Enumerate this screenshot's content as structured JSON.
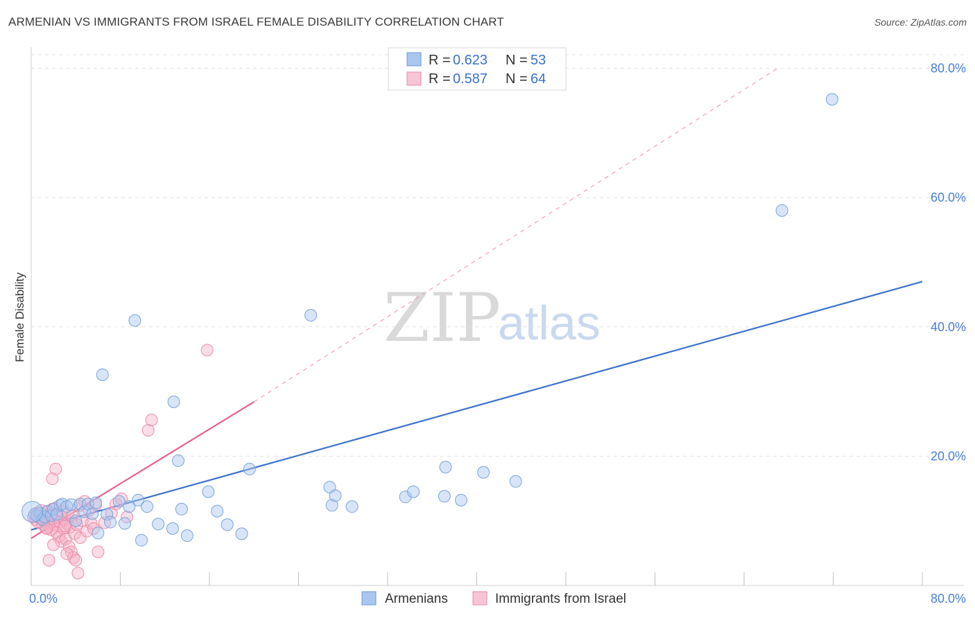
{
  "title": "ARMENIAN VS IMMIGRANTS FROM ISRAEL FEMALE DISABILITY CORRELATION CHART",
  "source": "Source: ZipAtlas.com",
  "watermark": {
    "zip": "ZIP",
    "atlas": "atlas"
  },
  "colors": {
    "blue": "#3a72cc",
    "blue_fill": "#a9c6ef",
    "pink": "#e8608a",
    "pink_fill": "#f5b3c8",
    "grid": "#dde2ea"
  },
  "legend": {
    "r_label": "R =",
    "n_label": "N =",
    "rows": [
      {
        "r": "0.623",
        "n": "53"
      },
      {
        "r": "0.587",
        "n": "64"
      }
    ]
  },
  "bottom_legend": [
    "Armenians",
    "Immigrants from Israel"
  ],
  "chart_data": {
    "type": "scatter",
    "title": "ARMENIAN VS IMMIGRANTS FROM ISRAEL FEMALE DISABILITY CORRELATION CHART",
    "xlabel": "",
    "ylabel": "Female Disability",
    "xlim": [
      0,
      80
    ],
    "ylim": [
      0,
      80
    ],
    "x_tick_labels": [
      "0.0%",
      "80.0%"
    ],
    "y_tick_labels": [
      "20.0%",
      "40.0%",
      "60.0%",
      "80.0%"
    ],
    "y_ticks": [
      20,
      40,
      60,
      80
    ],
    "series": [
      {
        "name": "Armenians",
        "r": 0.623,
        "n": 53,
        "trend": {
          "x": [
            0,
            80
          ],
          "y": [
            8.6,
            47.0
          ]
        },
        "points": [
          [
            0.3,
            11.0
          ],
          [
            0.5,
            10.8
          ],
          [
            0.8,
            11.2
          ],
          [
            1.0,
            10.2
          ],
          [
            1.2,
            10.6
          ],
          [
            1.5,
            11.5
          ],
          [
            1.8,
            10.8
          ],
          [
            2.0,
            11.8
          ],
          [
            2.3,
            11.0
          ],
          [
            2.6,
            12.4
          ],
          [
            2.8,
            12.6
          ],
          [
            3.2,
            12.2
          ],
          [
            3.6,
            12.5
          ],
          [
            4.0,
            10.0
          ],
          [
            4.4,
            12.6
          ],
          [
            4.8,
            11.4
          ],
          [
            5.1,
            12.6
          ],
          [
            5.5,
            11.1
          ],
          [
            5.8,
            12.8
          ],
          [
            6.0,
            8.1
          ],
          [
            6.4,
            32.6
          ],
          [
            6.8,
            11.0
          ],
          [
            7.1,
            9.8
          ],
          [
            7.9,
            13.0
          ],
          [
            8.4,
            9.6
          ],
          [
            8.8,
            12.2
          ],
          [
            9.3,
            41.0
          ],
          [
            9.6,
            13.2
          ],
          [
            9.9,
            7.0
          ],
          [
            10.4,
            12.2
          ],
          [
            11.4,
            9.5
          ],
          [
            12.7,
            8.8
          ],
          [
            12.8,
            28.4
          ],
          [
            13.2,
            19.3
          ],
          [
            13.5,
            11.8
          ],
          [
            14.0,
            7.7
          ],
          [
            15.9,
            14.5
          ],
          [
            16.7,
            11.5
          ],
          [
            17.6,
            9.4
          ],
          [
            18.9,
            8.0
          ],
          [
            19.6,
            18.0
          ],
          [
            25.1,
            41.8
          ],
          [
            26.8,
            15.2
          ],
          [
            27.0,
            12.4
          ],
          [
            27.3,
            13.9
          ],
          [
            28.8,
            12.2
          ],
          [
            33.6,
            13.7
          ],
          [
            34.3,
            14.5
          ],
          [
            37.1,
            13.8
          ],
          [
            37.2,
            18.3
          ],
          [
            38.6,
            13.2
          ],
          [
            40.6,
            17.5
          ],
          [
            43.5,
            16.1
          ],
          [
            67.4,
            58.0
          ],
          [
            71.9,
            75.2
          ]
        ]
      },
      {
        "name": "Immigrants from Israel",
        "r": 0.587,
        "n": 64,
        "trend": {
          "x": [
            0,
            20
          ],
          "y": [
            7.3,
            28.4
          ]
        },
        "trend_extended": {
          "x": [
            20,
            67
          ],
          "y": [
            28.4,
            80.0
          ]
        },
        "points": [
          [
            0.2,
            10.6
          ],
          [
            0.4,
            10.2
          ],
          [
            0.5,
            11.2
          ],
          [
            0.6,
            9.8
          ],
          [
            0.8,
            10.4
          ],
          [
            0.9,
            11.6
          ],
          [
            1.0,
            9.5
          ],
          [
            1.1,
            10.9
          ],
          [
            1.2,
            10.0
          ],
          [
            1.3,
            8.9
          ],
          [
            1.4,
            11.4
          ],
          [
            1.5,
            10.3
          ],
          [
            1.6,
            9.2
          ],
          [
            1.7,
            10.8
          ],
          [
            1.8,
            8.6
          ],
          [
            1.9,
            11.8
          ],
          [
            2.0,
            10.1
          ],
          [
            2.1,
            9.4
          ],
          [
            2.2,
            12.0
          ],
          [
            2.3,
            8.2
          ],
          [
            2.4,
            10.6
          ],
          [
            2.5,
            7.5
          ],
          [
            2.6,
            9.8
          ],
          [
            2.7,
            6.8
          ],
          [
            2.8,
            11.5
          ],
          [
            2.9,
            8.8
          ],
          [
            3.0,
            10.2
          ],
          [
            3.1,
            7.2
          ],
          [
            3.2,
            9.6
          ],
          [
            3.3,
            11.2
          ],
          [
            3.4,
            6.0
          ],
          [
            3.5,
            9.0
          ],
          [
            3.6,
            5.2
          ],
          [
            3.7,
            10.8
          ],
          [
            3.8,
            4.3
          ],
          [
            3.9,
            8.0
          ],
          [
            4.0,
            3.9
          ],
          [
            4.1,
            9.4
          ],
          [
            4.2,
            1.9
          ],
          [
            4.3,
            12.3
          ],
          [
            4.4,
            7.4
          ],
          [
            4.6,
            10.0
          ],
          [
            4.8,
            13.0
          ],
          [
            5.0,
            8.4
          ],
          [
            5.2,
            11.6
          ],
          [
            5.4,
            9.6
          ],
          [
            5.6,
            8.8
          ],
          [
            5.8,
            12.5
          ],
          [
            6.0,
            5.2
          ],
          [
            6.6,
            9.7
          ],
          [
            7.2,
            11.2
          ],
          [
            7.6,
            12.6
          ],
          [
            8.1,
            13.4
          ],
          [
            8.6,
            10.6
          ],
          [
            1.9,
            16.5
          ],
          [
            2.2,
            18.0
          ],
          [
            10.5,
            24.0
          ],
          [
            10.8,
            25.6
          ],
          [
            15.8,
            36.4
          ],
          [
            3.0,
            9.2
          ],
          [
            1.4,
            8.8
          ],
          [
            2.0,
            6.3
          ],
          [
            1.6,
            3.9
          ],
          [
            3.2,
            4.9
          ]
        ]
      }
    ],
    "legend_position": "top-center"
  }
}
